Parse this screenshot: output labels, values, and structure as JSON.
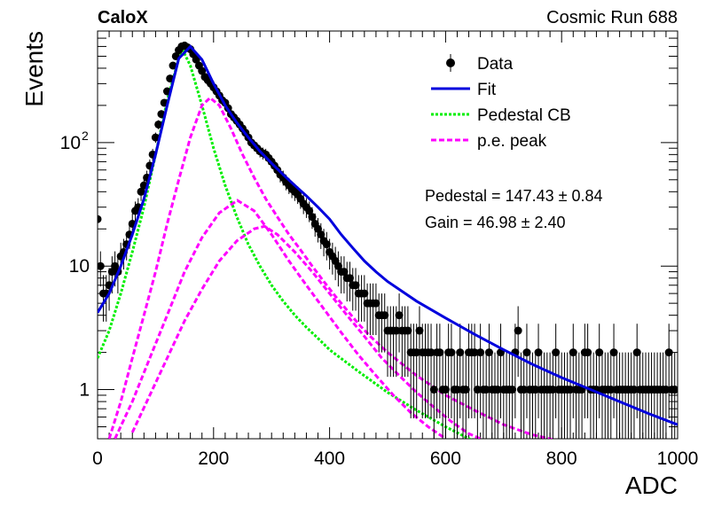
{
  "chart_data": {
    "type": "scatter",
    "title_left": "CaloX",
    "title_right": "Cosmic Run 688",
    "xlabel": "ADC",
    "ylabel": "Events",
    "xlim": [
      0,
      1000
    ],
    "ylim": [
      0.4,
      800
    ],
    "yscale": "log",
    "x_ticks": [
      "0",
      "200",
      "400",
      "600",
      "800",
      "1000"
    ],
    "y_ticks": [
      {
        "value": 1,
        "label": "1"
      },
      {
        "value": 10,
        "label": "10"
      },
      {
        "value": 100,
        "label": "10",
        "exponent": "2"
      }
    ],
    "grid": false,
    "legend_position": "top-right",
    "legend": [
      {
        "label": "Data",
        "style": "marker",
        "color": "#000000"
      },
      {
        "label": "Fit",
        "style": "solid",
        "color": "#0000dd"
      },
      {
        "label": "Pedestal CB",
        "style": "dotted",
        "color": "#00ee00"
      },
      {
        "label": "p.e. peak",
        "style": "dashed",
        "color": "#ff00ff"
      }
    ],
    "annotations": [
      {
        "text": "Pedestal = 147.43 ± 0.84"
      },
      {
        "text": "Gain = 46.98 ± 2.40"
      }
    ],
    "fit_parameters": {
      "pedestal": 147.43,
      "pedestal_err": 0.84,
      "gain": 46.98,
      "gain_err": 2.4
    },
    "series": [
      {
        "name": "Data",
        "style": "points",
        "color": "#000000",
        "x": [
          0,
          5,
          10,
          15,
          20,
          25,
          30,
          35,
          40,
          45,
          50,
          55,
          60,
          65,
          70,
          75,
          80,
          85,
          90,
          95,
          100,
          105,
          110,
          115,
          120,
          125,
          130,
          135,
          140,
          145,
          150,
          155,
          160,
          165,
          170,
          175,
          180,
          185,
          190,
          195,
          200,
          205,
          210,
          215,
          220,
          225,
          230,
          235,
          240,
          245,
          250,
          255,
          260,
          265,
          270,
          275,
          280,
          285,
          290,
          295,
          300,
          305,
          310,
          315,
          320,
          325,
          330,
          335,
          340,
          345,
          350,
          355,
          360,
          365,
          370,
          375,
          380,
          385,
          390,
          395,
          400,
          405,
          410,
          415,
          420,
          425,
          430,
          435,
          440,
          445,
          450,
          455,
          460,
          465,
          470,
          475,
          480,
          485,
          490,
          495,
          500,
          505,
          510,
          515,
          520,
          525,
          530,
          535,
          540,
          545,
          550,
          555,
          560,
          565,
          570,
          575,
          580,
          585,
          590,
          595,
          600,
          605,
          610,
          615,
          620,
          625,
          630,
          635,
          640,
          645,
          650,
          655,
          660,
          665,
          670,
          675,
          680,
          685,
          690,
          695,
          700,
          705,
          710,
          715,
          720,
          725,
          730,
          735,
          740,
          745,
          750,
          755,
          760,
          765,
          770,
          775,
          780,
          785,
          790,
          795,
          800,
          805,
          810,
          815,
          820,
          825,
          830,
          835,
          840,
          845,
          850,
          855,
          860,
          865,
          870,
          875,
          880,
          885,
          890,
          895,
          900,
          905,
          910,
          915,
          920,
          925,
          930,
          935,
          940,
          945,
          950,
          955,
          960,
          965,
          970,
          975,
          980,
          985,
          990,
          995
        ],
        "y": [
          24,
          10,
          6,
          6,
          7,
          9,
          10,
          9,
          12,
          13,
          15,
          18,
          22,
          28,
          30,
          40,
          45,
          52,
          65,
          80,
          110,
          140,
          170,
          210,
          260,
          330,
          420,
          500,
          560,
          600,
          610,
          590,
          570,
          520,
          470,
          420,
          380,
          340,
          320,
          300,
          280,
          260,
          240,
          220,
          210,
          190,
          170,
          160,
          150,
          140,
          130,
          120,
          110,
          100,
          95,
          90,
          85,
          82,
          80,
          75,
          70,
          65,
          60,
          55,
          52,
          48,
          45,
          42,
          40,
          38,
          35,
          32,
          30,
          28,
          25,
          22,
          20,
          18,
          16,
          15,
          13,
          12,
          11,
          10,
          9,
          9,
          8,
          8,
          7,
          7,
          6,
          6,
          6,
          5,
          5,
          5,
          5,
          4,
          4,
          4,
          3,
          3,
          3,
          3,
          4,
          3,
          3,
          3,
          2,
          2,
          2,
          3,
          2,
          2,
          2,
          2,
          1,
          2,
          2,
          1,
          1,
          2,
          2,
          1,
          1,
          2,
          1,
          1,
          2,
          2,
          2,
          1,
          2,
          1,
          1,
          2,
          1,
          1,
          1,
          2,
          1,
          1,
          1,
          1,
          2,
          3,
          1,
          1,
          2,
          1,
          1,
          1,
          2,
          1,
          1,
          1,
          1,
          1,
          2,
          1,
          1,
          1,
          1,
          1,
          2,
          1,
          1,
          1,
          2,
          2,
          1,
          1,
          1,
          2,
          1,
          1,
          1,
          1,
          2,
          1,
          1,
          1,
          1,
          1,
          1,
          1,
          2,
          1,
          1,
          1,
          1,
          1,
          1,
          1,
          1,
          1,
          1,
          2,
          1,
          1
        ]
      },
      {
        "name": "Fit",
        "style": "solid",
        "color": "#0000dd",
        "x": [
          0,
          20,
          40,
          60,
          80,
          100,
          120,
          140,
          160,
          180,
          200,
          220,
          240,
          260,
          280,
          300,
          320,
          340,
          360,
          380,
          400,
          420,
          440,
          460,
          480,
          500,
          550,
          600,
          650,
          700,
          750,
          800,
          850,
          900,
          950,
          1000
        ],
        "y": [
          4.2,
          6,
          10,
          18,
          35,
          80,
          200,
          480,
          600,
          470,
          300,
          200,
          145,
          110,
          85,
          68,
          55,
          45,
          37,
          30,
          24,
          18,
          14,
          11,
          9,
          7.5,
          5.2,
          3.8,
          2.8,
          2.1,
          1.6,
          1.25,
          1,
          0.8,
          0.64,
          0.52
        ]
      },
      {
        "name": "Pedestal CB",
        "style": "dotted",
        "color": "#00ee00",
        "x": [
          0,
          20,
          40,
          60,
          80,
          100,
          120,
          140,
          147,
          160,
          180,
          200,
          220,
          240,
          260,
          280,
          300,
          320,
          340,
          360,
          380,
          400,
          450,
          500,
          550,
          600,
          650,
          700
        ],
        "y": [
          1.8,
          3,
          6,
          13,
          30,
          80,
          220,
          480,
          560,
          420,
          200,
          90,
          45,
          25,
          15,
          10,
          7,
          5.2,
          4,
          3.2,
          2.6,
          2.1,
          1.4,
          0.95,
          0.68,
          0.5,
          0.38,
          0.3
        ]
      },
      {
        "name": "p.e. peak 1",
        "style": "dashed",
        "color": "#ff00ff",
        "x": [
          20,
          40,
          60,
          80,
          100,
          120,
          140,
          160,
          180,
          194,
          210,
          230,
          250,
          270,
          290,
          310,
          330,
          350,
          370,
          390,
          410,
          430,
          450,
          470,
          500,
          550,
          600,
          650,
          700,
          750,
          800,
          850
        ],
        "y": [
          0.4,
          0.8,
          1.8,
          4,
          9,
          22,
          50,
          110,
          200,
          230,
          200,
          130,
          80,
          52,
          35,
          25,
          18,
          13.5,
          10,
          7.5,
          5.7,
          4.4,
          3.4,
          2.7,
          2,
          1.3,
          0.9,
          0.68,
          0.52,
          0.43,
          0.38,
          0.35
        ]
      },
      {
        "name": "p.e. peak 2",
        "style": "dashed",
        "color": "#ff00ff",
        "x": [
          30,
          60,
          90,
          120,
          150,
          180,
          210,
          241,
          270,
          300,
          330,
          360,
          390,
          420,
          450,
          480,
          510,
          540,
          570,
          600
        ],
        "y": [
          0.4,
          0.8,
          1.8,
          4,
          9,
          17,
          27,
          34,
          28,
          18,
          11,
          7,
          4.5,
          2.9,
          1.9,
          1.3,
          0.9,
          0.65,
          0.5,
          0.4
        ]
      },
      {
        "name": "p.e. peak 3",
        "style": "dashed",
        "color": "#ff00ff",
        "x": [
          60,
          90,
          120,
          150,
          180,
          210,
          240,
          270,
          288,
          310,
          340,
          370,
          400,
          430,
          460,
          490,
          520,
          550,
          580,
          610,
          640,
          660
        ],
        "y": [
          0.45,
          0.9,
          1.8,
          3.6,
          6.5,
          11,
          16,
          20,
          21,
          18,
          13,
          9,
          6,
          4,
          2.7,
          1.8,
          1.3,
          0.95,
          0.72,
          0.55,
          0.44,
          0.4
        ]
      }
    ]
  }
}
